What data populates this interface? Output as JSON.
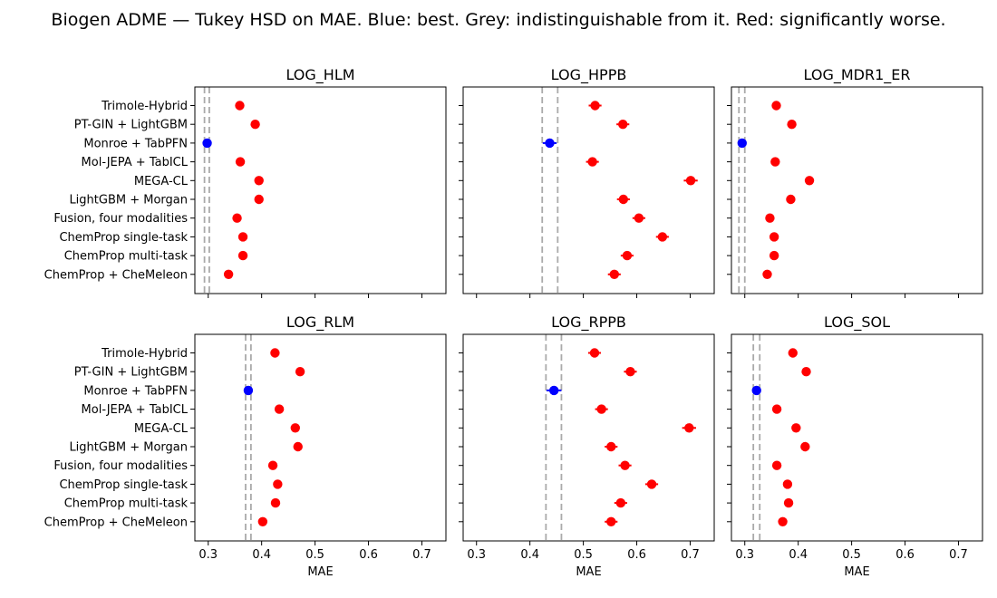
{
  "figure": {
    "title": "Biogen ADME — Tukey HSD on MAE. Blue: best. Grey: indistinguishable from it. Red: significantly worse.",
    "colors": {
      "best": "#0000ff",
      "worse": "#ff0000",
      "indistinguishable": "#aaaaaa"
    }
  },
  "chart_data": [
    {
      "type": "scatter",
      "title": "LOG_HLM",
      "xlabel": "",
      "categories": [
        "Trimole-Hybrid",
        "PT-GIN + LightGBM",
        "Monroe + TabPFN",
        "Mol-JEPA + TabICL",
        "MEGA-CL",
        "LightGBM + Morgan",
        "Fusion, four modalities",
        "ChemProp single-task",
        "ChemProp multi-task",
        "ChemProp + CheMeleon"
      ],
      "values": [
        0.359,
        0.388,
        0.298,
        0.36,
        0.395,
        0.395,
        0.354,
        0.365,
        0.365,
        0.338
      ],
      "errors": [
        0.006,
        0.006,
        0.006,
        0.006,
        0.006,
        0.006,
        0.006,
        0.006,
        0.006,
        0.006
      ],
      "status": [
        "worse",
        "worse",
        "best",
        "worse",
        "worse",
        "worse",
        "worse",
        "worse",
        "worse",
        "worse"
      ],
      "hsd_band": [
        0.293,
        0.302
      ],
      "xlim": [
        0.275,
        0.745
      ],
      "xticks": [
        "0.3",
        "0.4",
        "0.5",
        "0.6",
        "0.7"
      ],
      "xtick_values": [
        0.3,
        0.4,
        0.5,
        0.6,
        0.7
      ]
    },
    {
      "type": "scatter",
      "title": "LOG_HPPB",
      "xlabel": "",
      "categories": [
        "Trimole-Hybrid",
        "PT-GIN + LightGBM",
        "Monroe + TabPFN",
        "Mol-JEPA + TabICL",
        "MEGA-CL",
        "LightGBM + Morgan",
        "Fusion, four modalities",
        "ChemProp single-task",
        "ChemProp multi-task",
        "ChemProp + CheMeleon"
      ],
      "values": [
        0.522,
        0.574,
        0.437,
        0.517,
        0.701,
        0.575,
        0.604,
        0.648,
        0.582,
        0.558
      ],
      "errors": [
        0.012,
        0.012,
        0.013,
        0.012,
        0.013,
        0.012,
        0.012,
        0.012,
        0.012,
        0.012
      ],
      "status": [
        "worse",
        "worse",
        "best",
        "worse",
        "worse",
        "worse",
        "worse",
        "worse",
        "worse",
        "worse"
      ],
      "hsd_band": [
        0.423,
        0.452
      ],
      "xlim": [
        0.275,
        0.745
      ],
      "xticks": [
        "0.3",
        "0.4",
        "0.5",
        "0.6",
        "0.7"
      ],
      "xtick_values": [
        0.3,
        0.4,
        0.5,
        0.6,
        0.7
      ]
    },
    {
      "type": "scatter",
      "title": "LOG_MDR1_ER",
      "xlabel": "",
      "categories": [
        "Trimole-Hybrid",
        "PT-GIN + LightGBM",
        "Monroe + TabPFN",
        "Mol-JEPA + TabICL",
        "MEGA-CL",
        "LightGBM + Morgan",
        "Fusion, four modalities",
        "ChemProp single-task",
        "ChemProp multi-task",
        "ChemProp + CheMeleon"
      ],
      "values": [
        0.359,
        0.388,
        0.295,
        0.357,
        0.421,
        0.386,
        0.347,
        0.355,
        0.355,
        0.342
      ],
      "errors": [
        0.005,
        0.005,
        0.006,
        0.005,
        0.005,
        0.005,
        0.005,
        0.005,
        0.005,
        0.005
      ],
      "status": [
        "worse",
        "worse",
        "best",
        "worse",
        "worse",
        "worse",
        "worse",
        "worse",
        "worse",
        "worse"
      ],
      "hsd_band": [
        0.289,
        0.3
      ],
      "xlim": [
        0.275,
        0.745
      ],
      "xticks": [
        "0.3",
        "0.4",
        "0.5",
        "0.6",
        "0.7"
      ],
      "xtick_values": [
        0.3,
        0.4,
        0.5,
        0.6,
        0.7
      ]
    },
    {
      "type": "scatter",
      "title": "LOG_RLM",
      "xlabel": "MAE",
      "categories": [
        "Trimole-Hybrid",
        "PT-GIN + LightGBM",
        "Monroe + TabPFN",
        "Mol-JEPA + TabICL",
        "MEGA-CL",
        "LightGBM + Morgan",
        "Fusion, four modalities",
        "ChemProp single-task",
        "ChemProp multi-task",
        "ChemProp + CheMeleon"
      ],
      "values": [
        0.425,
        0.472,
        0.375,
        0.433,
        0.463,
        0.468,
        0.421,
        0.43,
        0.426,
        0.402
      ],
      "errors": [
        0.006,
        0.006,
        0.006,
        0.006,
        0.006,
        0.006,
        0.006,
        0.006,
        0.006,
        0.006
      ],
      "status": [
        "worse",
        "worse",
        "best",
        "worse",
        "worse",
        "worse",
        "worse",
        "worse",
        "worse",
        "worse"
      ],
      "hsd_band": [
        0.37,
        0.38
      ],
      "xlim": [
        0.275,
        0.745
      ],
      "xticks": [
        "0.3",
        "0.4",
        "0.5",
        "0.6",
        "0.7"
      ],
      "xtick_values": [
        0.3,
        0.4,
        0.5,
        0.6,
        0.7
      ]
    },
    {
      "type": "scatter",
      "title": "LOG_RPPB",
      "xlabel": "MAE",
      "categories": [
        "Trimole-Hybrid",
        "PT-GIN + LightGBM",
        "Monroe + TabPFN",
        "Mol-JEPA + TabICL",
        "MEGA-CL",
        "LightGBM + Morgan",
        "Fusion, four modalities",
        "ChemProp single-task",
        "ChemProp multi-task",
        "ChemProp + CheMeleon"
      ],
      "values": [
        0.521,
        0.588,
        0.445,
        0.534,
        0.698,
        0.552,
        0.578,
        0.628,
        0.57,
        0.552
      ],
      "errors": [
        0.012,
        0.012,
        0.014,
        0.012,
        0.013,
        0.012,
        0.012,
        0.012,
        0.012,
        0.012
      ],
      "status": [
        "worse",
        "worse",
        "best",
        "worse",
        "worse",
        "worse",
        "worse",
        "worse",
        "worse",
        "worse"
      ],
      "hsd_band": [
        0.43,
        0.459
      ],
      "xlim": [
        0.275,
        0.745
      ],
      "xticks": [
        "0.3",
        "0.4",
        "0.5",
        "0.6",
        "0.7"
      ],
      "xtick_values": [
        0.3,
        0.4,
        0.5,
        0.6,
        0.7
      ]
    },
    {
      "type": "scatter",
      "title": "LOG_SOL",
      "xlabel": "MAE",
      "categories": [
        "Trimole-Hybrid",
        "PT-GIN + LightGBM",
        "Monroe + TabPFN",
        "Mol-JEPA + TabICL",
        "MEGA-CL",
        "LightGBM + Morgan",
        "Fusion, four modalities",
        "ChemProp single-task",
        "ChemProp multi-task",
        "ChemProp + CheMeleon"
      ],
      "values": [
        0.39,
        0.415,
        0.322,
        0.36,
        0.396,
        0.413,
        0.36,
        0.38,
        0.382,
        0.371
      ],
      "errors": [
        0.005,
        0.005,
        0.006,
        0.005,
        0.005,
        0.005,
        0.005,
        0.005,
        0.005,
        0.005
      ],
      "status": [
        "worse",
        "worse",
        "best",
        "worse",
        "worse",
        "worse",
        "worse",
        "worse",
        "worse",
        "worse"
      ],
      "hsd_band": [
        0.316,
        0.328
      ],
      "xlim": [
        0.275,
        0.745
      ],
      "xticks": [
        "0.3",
        "0.4",
        "0.5",
        "0.6",
        "0.7"
      ],
      "xtick_values": [
        0.3,
        0.4,
        0.5,
        0.6,
        0.7
      ]
    }
  ]
}
